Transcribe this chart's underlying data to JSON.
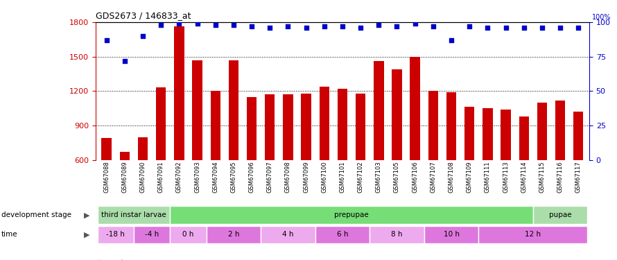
{
  "title": "GDS2673 / 146833_at",
  "samples": [
    "GSM67088",
    "GSM67089",
    "GSM67090",
    "GSM67091",
    "GSM67092",
    "GSM67093",
    "GSM67094",
    "GSM67095",
    "GSM67096",
    "GSM67097",
    "GSM67098",
    "GSM67099",
    "GSM67100",
    "GSM67101",
    "GSM67102",
    "GSM67103",
    "GSM67105",
    "GSM67106",
    "GSM67107",
    "GSM67108",
    "GSM67109",
    "GSM67111",
    "GSM67113",
    "GSM67114",
    "GSM67115",
    "GSM67116",
    "GSM67117"
  ],
  "counts": [
    790,
    670,
    800,
    1230,
    1760,
    1470,
    1200,
    1470,
    1150,
    1170,
    1170,
    1180,
    1240,
    1220,
    1180,
    1460,
    1390,
    1500,
    1200,
    1190,
    1060,
    1050,
    1040,
    980,
    1100,
    1120,
    1020
  ],
  "percentile": [
    87,
    72,
    90,
    98,
    99,
    99,
    98,
    98,
    97,
    96,
    97,
    96,
    97,
    97,
    96,
    98,
    97,
    99,
    97,
    87,
    97,
    96,
    96,
    96,
    96,
    96,
    96
  ],
  "bar_color": "#cc0000",
  "dot_color": "#0000cc",
  "ylim_left": [
    600,
    1800
  ],
  "yticks_left": [
    600,
    900,
    1200,
    1500,
    1800
  ],
  "ylim_right": [
    0,
    100
  ],
  "yticks_right": [
    0,
    25,
    50,
    75,
    100
  ],
  "grid_lines": [
    900,
    1200,
    1500
  ],
  "dev_stages": [
    {
      "label": "third instar larvae",
      "start": 0,
      "end": 4,
      "color": "#aaddaa"
    },
    {
      "label": "prepupae",
      "start": 4,
      "end": 24,
      "color": "#77dd77"
    },
    {
      "label": "pupae",
      "start": 24,
      "end": 27,
      "color": "#aaddaa"
    }
  ],
  "time_segments": [
    {
      "label": "-18 h",
      "start": 0,
      "end": 2,
      "color": "#eeaaee"
    },
    {
      "label": "-4 h",
      "start": 2,
      "end": 4,
      "color": "#dd77dd"
    },
    {
      "label": "0 h",
      "start": 4,
      "end": 6,
      "color": "#eeaaee"
    },
    {
      "label": "2 h",
      "start": 6,
      "end": 9,
      "color": "#dd77dd"
    },
    {
      "label": "4 h",
      "start": 9,
      "end": 12,
      "color": "#eeaaee"
    },
    {
      "label": "6 h",
      "start": 12,
      "end": 15,
      "color": "#dd77dd"
    },
    {
      "label": "8 h",
      "start": 15,
      "end": 18,
      "color": "#eeaaee"
    },
    {
      "label": "10 h",
      "start": 18,
      "end": 21,
      "color": "#dd77dd"
    },
    {
      "label": "12 h",
      "start": 21,
      "end": 27,
      "color": "#dd77dd"
    }
  ],
  "left_axis_color": "#cc0000",
  "right_axis_color": "#0000cc",
  "bg_color": "#ffffff",
  "xtick_bg": "#c8c8c8"
}
